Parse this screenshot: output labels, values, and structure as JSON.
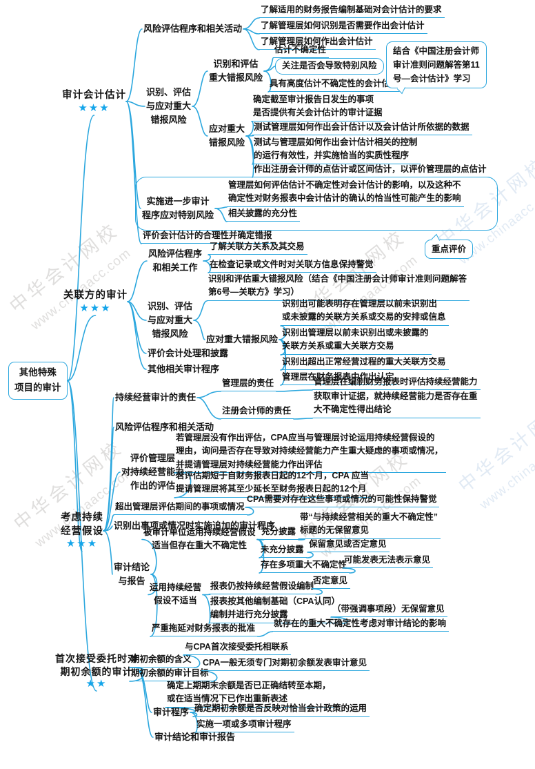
{
  "watermark": {
    "site_name": "中华会计网校",
    "site_url": "www.chinaacc.com"
  },
  "map": {
    "root": {
      "label": "其他特殊\n项目的审计"
    },
    "branches": [
      {
        "label": "审计会计估计",
        "stars": "★★★",
        "children": [
          {
            "label": "风险评估程序和相关活动",
            "children": [
              {
                "label": "了解适用的财务报告编制基础对会计估计的要求"
              },
              {
                "label": "了解管理层如何识别是否需要作出会计估计"
              },
              {
                "label": "了解管理层如何作出会计估计"
              }
            ]
          },
          {
            "label": "识别、评估\n与应对重大\n错报风险",
            "children": [
              {
                "label": "识别和评估\n重大错报风险",
                "note": "结合《中国注册会计师\n审计准则问题解答第11\n号—会计估计》学习",
                "children": [
                  {
                    "label": "估计不确定性"
                  },
                  {
                    "label": "关注是否会导致特别风险"
                  },
                  {
                    "label": "具有高度估计不确定性的会计估计"
                  }
                ]
              },
              {
                "label": "应对重大\n错报风险",
                "children": [
                  {
                    "label": "确定截至审计报告日发生的事项\n是否提供有关会计估计的审计证据"
                  },
                  {
                    "label": "测试管理层如何作出会计估计以及会计估计所依据的数据"
                  },
                  {
                    "label": "测试与管理层如何作出会计估计相关的控制\n的运行有效性，并实施恰当的实质性程序"
                  },
                  {
                    "label": "作出注册会计师的点估计或区间估计，以评价管理层的点估计"
                  }
                ]
              }
            ]
          },
          {
            "label": "实施进一步审计\n程序应对特别风险",
            "children": [
              {
                "label": "管理层如何评估估计不确定性对会计估计的影响，以及这种不\n确定性对财务报表中会计估计的确认的恰当性可能产生的影响"
              },
              {
                "label": "相关披露的充分性"
              }
            ]
          },
          {
            "label": "评价会计估计的合理性并确定错报"
          }
        ]
      },
      {
        "label": "关联方的审计",
        "stars": "★★★",
        "children": [
          {
            "label": "风险评估程序\n和相关工作",
            "children": [
              {
                "label": "了解关联方关系及其交易",
                "note": "重点评价"
              },
              {
                "label": "在检查记录或文件时对关联方信息保持警觉"
              }
            ]
          },
          {
            "label": "识别、评估\n与应对重大\n错报风险",
            "children": [
              {
                "label": "识别和评估重大错报风险（结合《中国注册会计师审计准则问题解答\n第6号—关联方》学习）"
              },
              {
                "label": "应对重大错报风险",
                "children": [
                  {
                    "label": "识别出可能表明存在管理层以前未识别出\n或未披露的关联方关系或交易的安排或信息"
                  },
                  {
                    "label": "识别出管理层以前未识别出或未披露的\n关联方关系或重大关联方交易"
                  },
                  {
                    "label": "识别出超出正常经营过程的重大关联方交易"
                  },
                  {
                    "label": "管理层在财务报表中作出认定"
                  }
                ]
              }
            ]
          },
          {
            "label": "评价会计处理和披露"
          },
          {
            "label": "其他相关审计程序"
          }
        ]
      },
      {
        "label": "考虑持续\n经营假设",
        "stars": "★★★",
        "children": [
          {
            "label": "持续经营审计的责任",
            "children": [
              {
                "label": "管理层的责任",
                "children": [
                  {
                    "label": "管理层在编制财务报表时评估持续经营能力"
                  }
                ]
              },
              {
                "label": "注册会计师的责任",
                "children": [
                  {
                    "label": "获取审计证据，就持续经营能力是否存在重\n大不确定性得出结论"
                  }
                ]
              }
            ]
          },
          {
            "label": "风险评估程序和相关活动"
          },
          {
            "label": "评价管理层\n对持续经营能力\n作出的评估",
            "children": [
              {
                "label": "若管理层没有作出评估，CPA应当与管理层讨论运用持续经营假设的\n理由，询问是否存在导致对持续经营能力产生重大疑虑的事项或情况，\n并提请管理层对持续经营能力作出评估"
              },
              {
                "label": "若评估期短于自财务报表日起的12个月，CPA 应当\n提请管理层将其至少延长至财务报表日起的12个月"
              }
            ]
          },
          {
            "label": "超出管理层评估期间的事项或情况",
            "children": [
              {
                "label": "CPA需要对存在这些事项或情况的可能性保持警觉"
              }
            ]
          },
          {
            "label": "识别出事项或情况时实施追加的审计程序"
          },
          {
            "label": "审计结论\n与报告",
            "children": [
              {
                "label": "被审计单位运用持续经营假设\n适当但存在重大不确定性",
                "children": [
                  {
                    "label": "充分披露",
                    "children": [
                      {
                        "label": "带“与持续经营相关的重大不确定性”\n标题的无保留意见"
                      }
                    ]
                  },
                  {
                    "label": "未充分披露",
                    "children": [
                      {
                        "label": "保留意见或否定意见"
                      }
                    ]
                  },
                  {
                    "label": "存在多项重大不确定性",
                    "children": [
                      {
                        "label": "可能发表无法表示意见"
                      }
                    ]
                  }
                ]
              },
              {
                "label": "运用持续经营\n假设不适当",
                "children": [
                  {
                    "label": "报表仍按持续经营假设编制",
                    "children": [
                      {
                        "label": "否定意见"
                      }
                    ]
                  },
                  {
                    "label": "报表按其他编制基础（CPA认同）\n编制并进行充分披露",
                    "children": [
                      {
                        "label": "（带强调事项段）无保留意见"
                      }
                    ]
                  }
                ]
              },
              {
                "label": "严重拖延对财务报表的批准",
                "children": [
                  {
                    "label": "就存在的重大不确定性考虑对审计结论的影响"
                  }
                ]
              }
            ]
          }
        ]
      },
      {
        "label": "首次接受委托时对\n期初余额的审计",
        "stars": "★★",
        "children": [
          {
            "label": "期初余额的含义",
            "children": [
              {
                "label": "与CPA首次接受委托相联系"
              }
            ]
          },
          {
            "label": "期初余额的审计目标",
            "children": [
              {
                "label": "CPA一般无须专门对期初余额发表审计意见"
              }
            ]
          },
          {
            "label": "审计程序",
            "children": [
              {
                "label": "确定上期期末余额是否已正确结转至本期，\n或在适当情况下已作出重新表述"
              },
              {
                "label": "确定期初余额是否反映对恰当会计政策的运用"
              },
              {
                "label": "实施一项或多项审计程序"
              }
            ]
          },
          {
            "label": "审计结论和审计报告"
          }
        ]
      }
    ]
  }
}
